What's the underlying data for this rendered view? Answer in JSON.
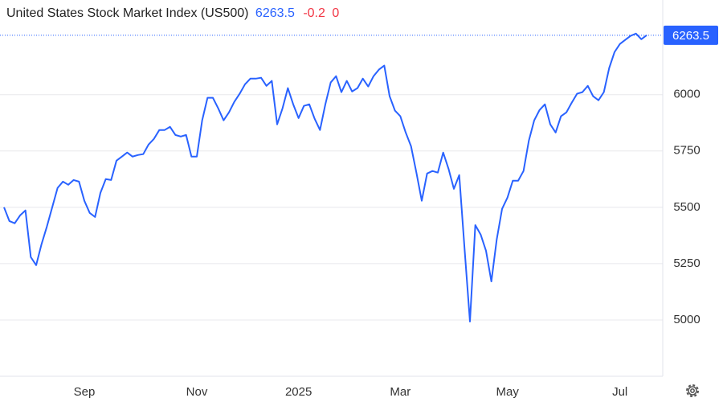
{
  "header": {
    "title": "United States Stock Market Index (US500)",
    "price": 6263.5,
    "change": -0.2,
    "change_pct": 0
  },
  "chart_data": {
    "type": "line",
    "color": "#2962ff",
    "categories": [
      null,
      null,
      null,
      null,
      null,
      null,
      null,
      null,
      null,
      null,
      null,
      null,
      null,
      null,
      null,
      "Sep",
      null,
      null,
      null,
      null,
      null,
      null,
      null,
      null,
      null,
      null,
      null,
      null,
      null,
      null,
      null,
      null,
      null,
      null,
      null,
      null,
      "Nov",
      null,
      null,
      null,
      null,
      null,
      null,
      null,
      null,
      null,
      null,
      null,
      null,
      null,
      null,
      null,
      null,
      null,
      null,
      "2025",
      null,
      null,
      null,
      null,
      null,
      null,
      null,
      null,
      null,
      null,
      null,
      null,
      null,
      null,
      null,
      null,
      null,
      null,
      "Mar",
      null,
      null,
      null,
      null,
      null,
      null,
      null,
      null,
      null,
      null,
      null,
      null,
      null,
      null,
      null,
      null,
      null,
      null,
      null,
      "May",
      null,
      null,
      null,
      null,
      null,
      null,
      null,
      null,
      null,
      null,
      null,
      null,
      null,
      null,
      null,
      null,
      null,
      null,
      null,
      null,
      "Jul",
      null,
      null,
      null,
      null,
      null
    ],
    "values": [
      5500,
      5439,
      5429,
      5464,
      5486,
      5279,
      5243,
      5336,
      5414,
      5500,
      5586,
      5614,
      5600,
      5621,
      5614,
      5529,
      5475,
      5457,
      5564,
      5625,
      5621,
      5707,
      5725,
      5743,
      5725,
      5732,
      5736,
      5779,
      5804,
      5843,
      5843,
      5857,
      5821,
      5814,
      5821,
      5725,
      5725,
      5886,
      5986,
      5986,
      5939,
      5886,
      5921,
      5968,
      6004,
      6046,
      6071,
      6071,
      6075,
      6039,
      6061,
      5868,
      5939,
      6029,
      5957,
      5896,
      5950,
      5957,
      5893,
      5843,
      5957,
      6054,
      6082,
      6011,
      6061,
      6014,
      6029,
      6071,
      6036,
      6082,
      6111,
      6129,
      5993,
      5929,
      5904,
      5832,
      5771,
      5654,
      5529,
      5650,
      5661,
      5654,
      5743,
      5671,
      5582,
      5643,
      5314,
      4993,
      5421,
      5379,
      5307,
      5171,
      5357,
      5493,
      5543,
      5618,
      5618,
      5661,
      5796,
      5886,
      5932,
      5957,
      5868,
      5832,
      5904,
      5921,
      5964,
      6004,
      6011,
      6039,
      5993,
      5975,
      6011,
      6118,
      6189,
      6225,
      6243,
      6261,
      6271,
      6246,
      6263.5
    ],
    "ylim": [
      4750,
      6420
    ],
    "yticks": [
      5000,
      5250,
      5500,
      5750,
      6000
    ],
    "grid": true
  }
}
